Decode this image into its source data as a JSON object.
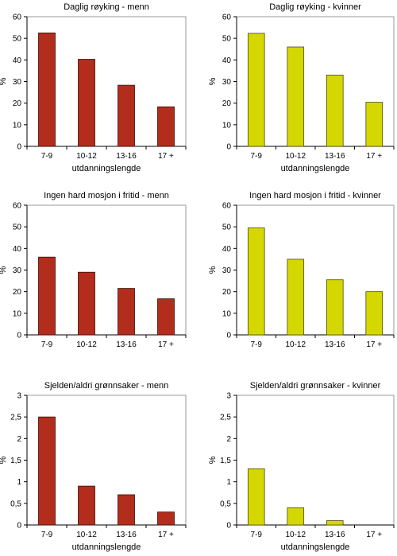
{
  "colors": {
    "men_fill": "#b22d1c",
    "men_stroke": "#3a0d08",
    "women_fill": "#d5d800",
    "women_stroke": "#4a4a00",
    "plot_border": "#999999",
    "axis": "#000000"
  },
  "chart_data": [
    {
      "type": "bar",
      "title": "Daglig røyking - menn",
      "categories": [
        "7-9",
        "10-12",
        "13-16",
        "17 +"
      ],
      "values": [
        52.5,
        40.3,
        28.3,
        18.3
      ],
      "xlabel": "utdanningslengde",
      "ylabel": "%",
      "ylim": [
        0,
        60
      ],
      "yticks": [
        "0",
        "10",
        "20",
        "30",
        "40",
        "50",
        "60"
      ],
      "series_color": "men",
      "grid": false
    },
    {
      "type": "bar",
      "title": "Daglig røyking - kvinner",
      "categories": [
        "7-9",
        "10-12",
        "13-16",
        "17 +"
      ],
      "values": [
        52.3,
        46.0,
        33.0,
        20.4
      ],
      "xlabel": "utdanningslengde",
      "ylabel": "%",
      "ylim": [
        0,
        60
      ],
      "yticks": [
        "0",
        "10",
        "20",
        "30",
        "40",
        "50",
        "60"
      ],
      "series_color": "women",
      "grid": false
    },
    {
      "type": "bar",
      "title": "Ingen hard mosjon i fritid - menn",
      "categories": [
        "7-9",
        "10-12",
        "13-16",
        "17 +"
      ],
      "values": [
        36.0,
        29.0,
        21.5,
        16.7
      ],
      "xlabel": "",
      "ylabel": "%",
      "ylim": [
        0,
        60
      ],
      "yticks": [
        "0",
        "10",
        "20",
        "30",
        "40",
        "50",
        "60"
      ],
      "series_color": "men",
      "grid": false
    },
    {
      "type": "bar",
      "title": "Ingen hard mosjon i fritid - kvinner",
      "categories": [
        "7-9",
        "10-12",
        "13-16",
        "17 +"
      ],
      "values": [
        49.5,
        35.0,
        25.5,
        20.0
      ],
      "xlabel": "",
      "ylabel": "%",
      "ylim": [
        0,
        60
      ],
      "yticks": [
        "0",
        "10",
        "20",
        "30",
        "40",
        "50",
        "60"
      ],
      "series_color": "women",
      "grid": false
    },
    {
      "type": "bar",
      "title": "Sjelden/aldri grønnsaker - menn",
      "categories": [
        "7-9",
        "10-12",
        "13-16",
        "17 +"
      ],
      "values": [
        2.5,
        0.9,
        0.7,
        0.3
      ],
      "xlabel": "utdanningslengde",
      "ylabel": "%",
      "ylim": [
        0,
        3
      ],
      "yticks": [
        "0",
        "0,5",
        "1",
        "1,5",
        "2",
        "2,5",
        "3"
      ],
      "series_color": "men",
      "grid": false
    },
    {
      "type": "bar",
      "title": "Sjelden/aldri grønnsaker - kvinner",
      "categories": [
        "7-9",
        "10-12",
        "13-16",
        "17 +"
      ],
      "values": [
        1.3,
        0.4,
        0.1,
        0.0
      ],
      "xlabel": "utdanningslengde",
      "ylabel": "%",
      "ylim": [
        0,
        3
      ],
      "yticks": [
        "0",
        "0,5",
        "1",
        "1,5",
        "2",
        "2,5",
        "3"
      ],
      "series_color": "women",
      "grid": false
    }
  ]
}
